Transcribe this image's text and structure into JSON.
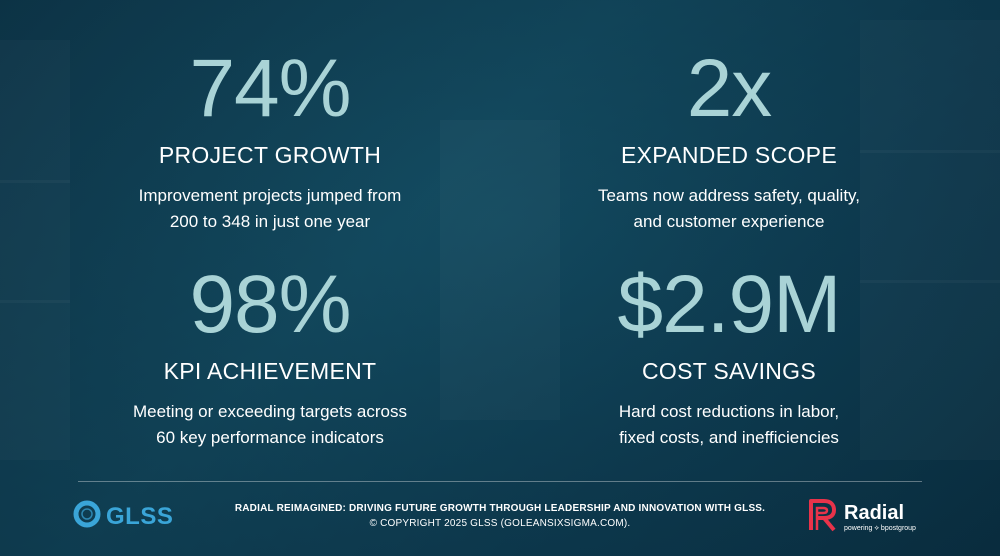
{
  "stats": [
    {
      "value": "74%",
      "title": "PROJECT GROWTH",
      "desc": [
        "Improvement projects jumped from",
        "200 to 348 in just one year"
      ]
    },
    {
      "value": "2x",
      "title": "EXPANDED SCOPE",
      "desc": [
        "Teams now address safety, quality,",
        "and customer experience"
      ]
    },
    {
      "value": "98%",
      "title": "KPI ACHIEVEMENT",
      "desc": [
        "Meeting or exceeding targets across",
        "60 key performance indicators"
      ]
    },
    {
      "value": "$2.9M",
      "title": "COST SAVINGS",
      "desc": [
        "Hard cost reductions in labor,",
        "fixed costs, and inefficiencies"
      ]
    }
  ],
  "footer": {
    "line1": "RADIAL REIMAGINED: DRIVING FUTURE GROWTH THROUGH LEADERSHIP AND INNOVATION WITH GLSS.",
    "line2": "© COPYRIGHT 2025 GLSS (GOLEANSIXSIGMA.COM)."
  },
  "logos": {
    "glss": {
      "text": "GLSS",
      "icon": "glss-ring-icon",
      "color": "#3aa5d8"
    },
    "radial": {
      "name": "Radial",
      "tagline": "powering ⟡ bpostgroup",
      "icon": "radial-r-icon",
      "color": "#e8334a"
    }
  },
  "colors": {
    "background": "#134a60",
    "accent": "#a9d3d6",
    "text": "#ffffff"
  }
}
